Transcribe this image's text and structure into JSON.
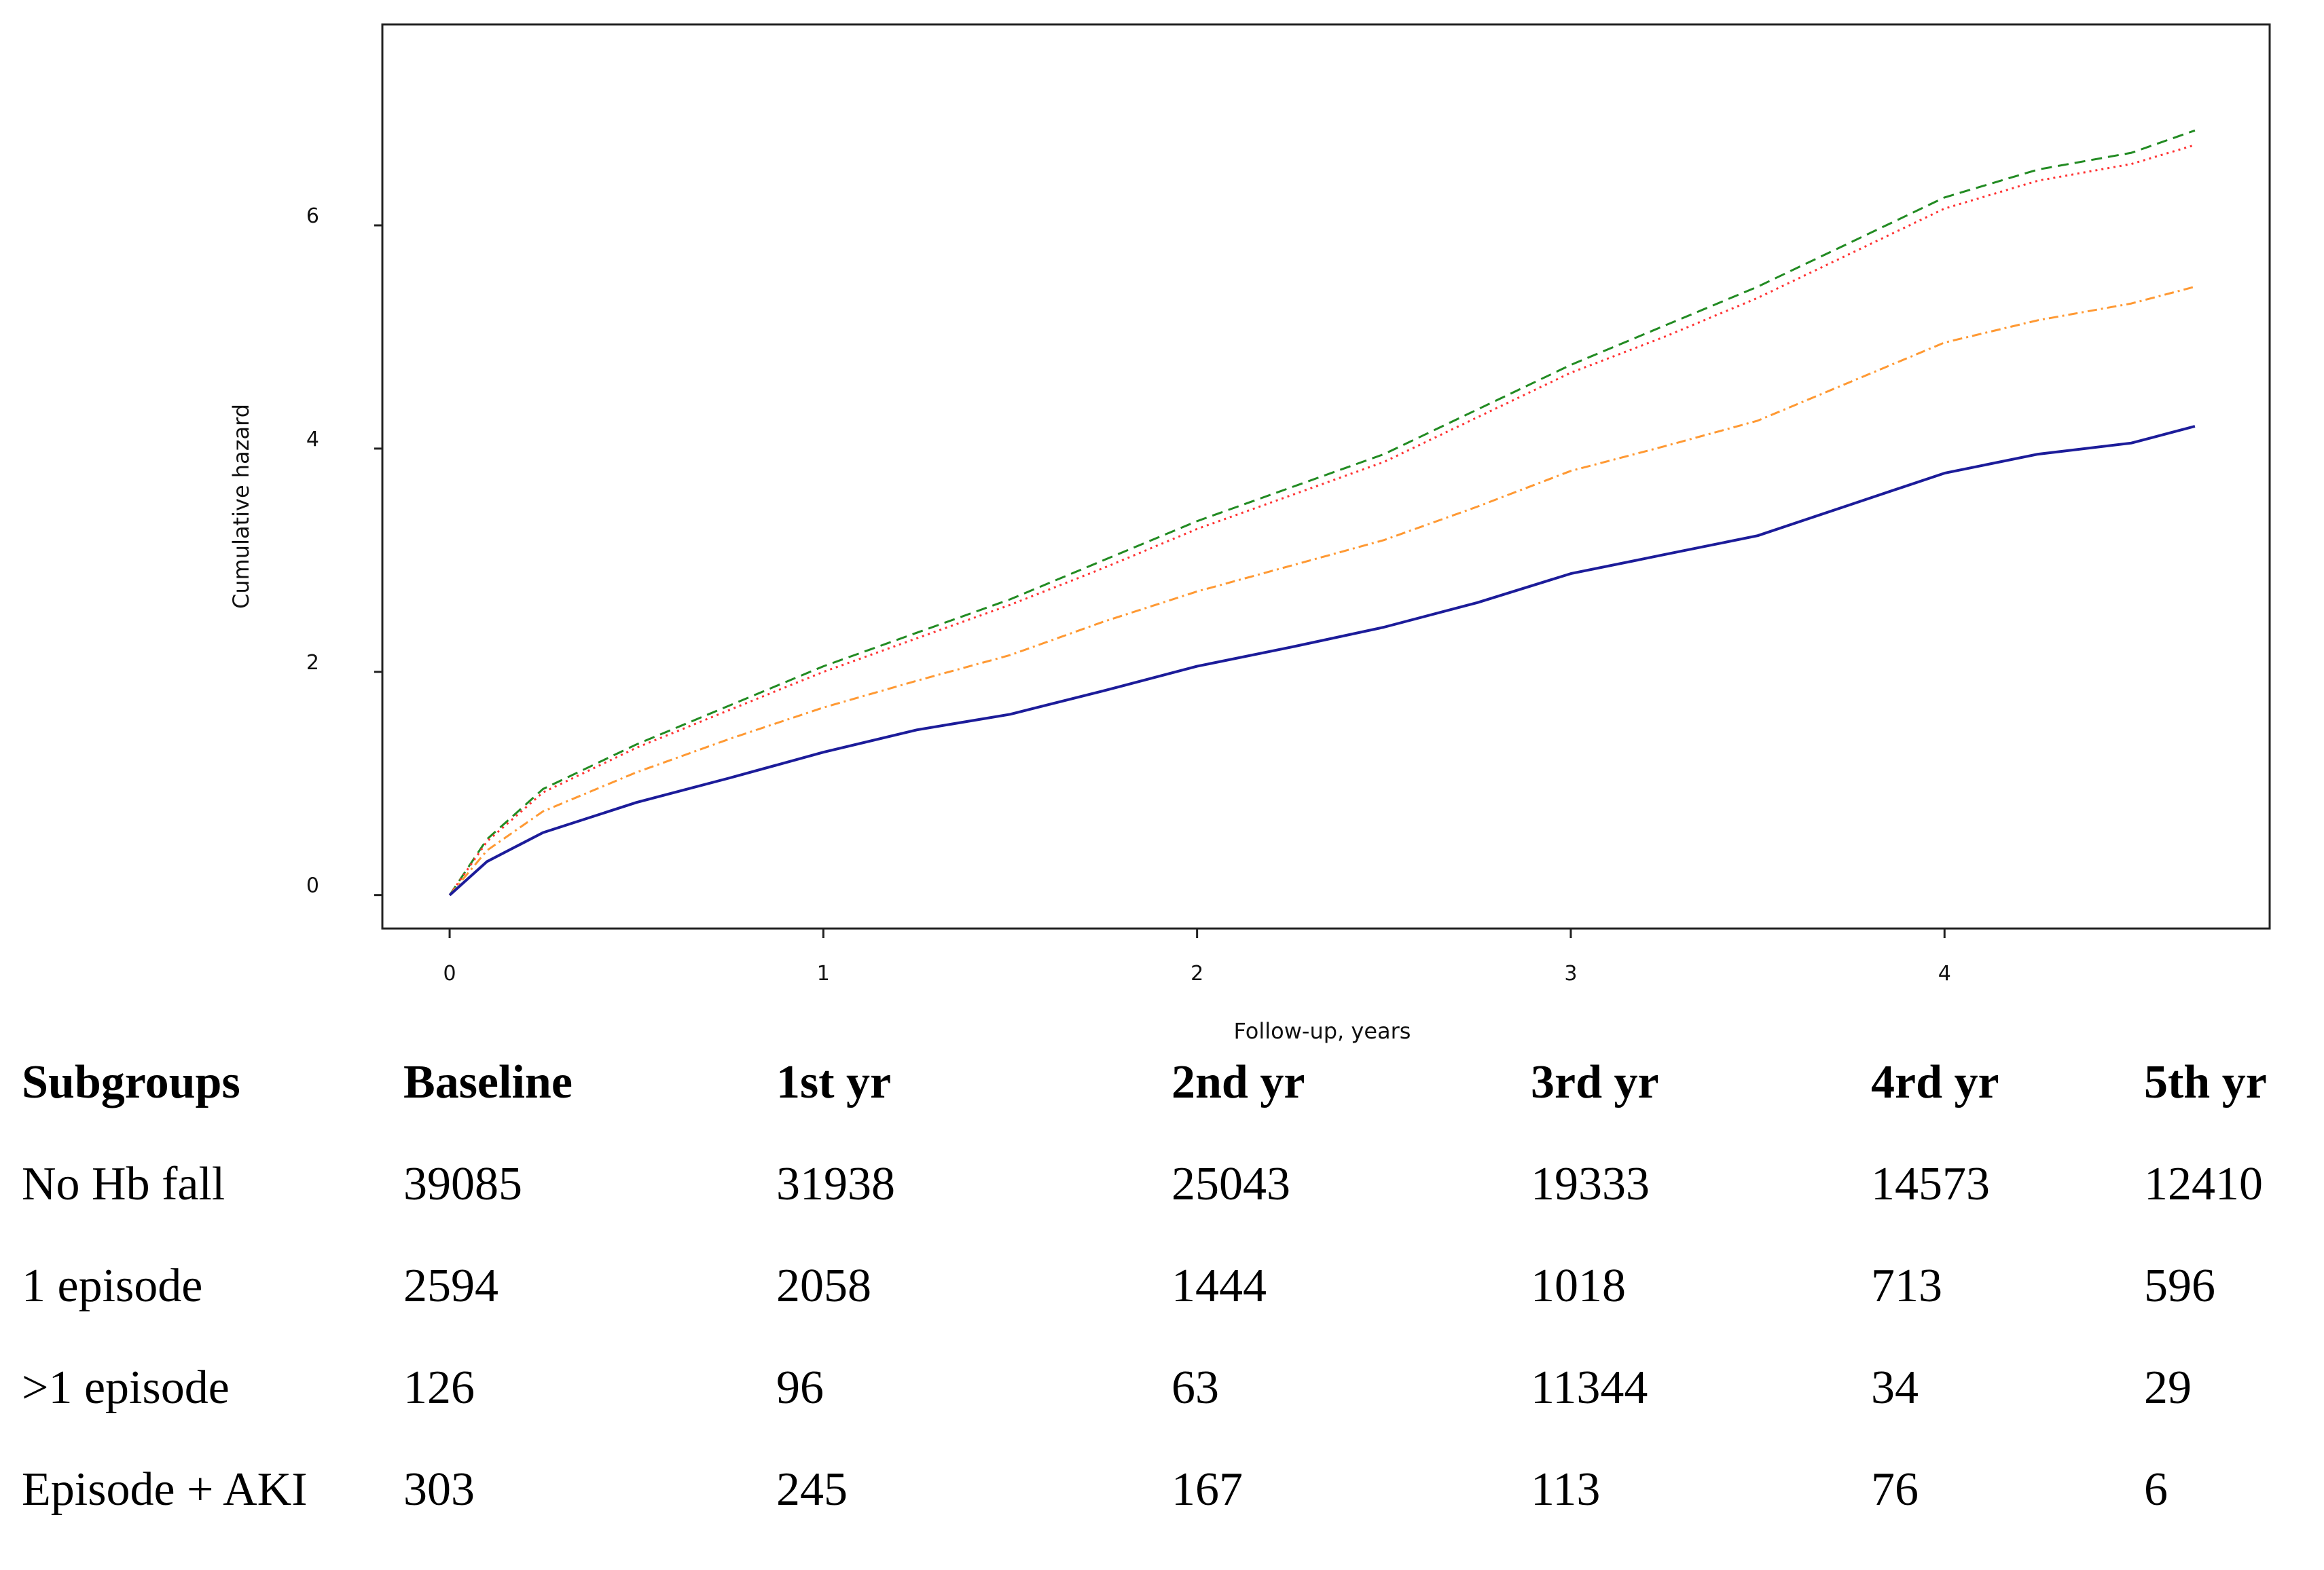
{
  "chart_data": {
    "type": "line",
    "xlabel": "Follow-up, years",
    "ylabel": "Cumulative hazard",
    "xlim": [
      -0.18,
      4.87
    ],
    "ylim": [
      -0.3,
      7.8
    ],
    "x_ticks": [
      0,
      1,
      2,
      3,
      4
    ],
    "y_ticks": [
      0,
      2,
      4,
      6
    ],
    "grid": false,
    "series": [
      {
        "color": "#228b22",
        "dash": "dashed",
        "x": [
          0,
          0.1,
          0.25,
          0.5,
          0.75,
          1.0,
          1.25,
          1.5,
          1.75,
          2.0,
          2.25,
          2.5,
          2.75,
          3.0,
          3.25,
          3.5,
          3.75,
          4.0,
          4.25,
          4.5,
          4.67
        ],
        "y": [
          0,
          0.5,
          0.95,
          1.35,
          1.7,
          2.05,
          2.35,
          2.65,
          3.0,
          3.35,
          3.65,
          3.95,
          4.35,
          4.75,
          5.1,
          5.45,
          5.85,
          6.25,
          6.5,
          6.65,
          6.85
        ]
      },
      {
        "color": "#ff3333",
        "dash": "dotted",
        "x": [
          0,
          0.1,
          0.25,
          0.5,
          0.75,
          1.0,
          1.25,
          1.5,
          1.75,
          2.0,
          2.25,
          2.5,
          2.75,
          3.0,
          3.25,
          3.5,
          3.75,
          4.0,
          4.25,
          4.5,
          4.67
        ],
        "y": [
          0,
          0.48,
          0.92,
          1.32,
          1.66,
          2.0,
          2.3,
          2.6,
          2.93,
          3.28,
          3.58,
          3.88,
          4.28,
          4.68,
          5.0,
          5.35,
          5.75,
          6.15,
          6.4,
          6.55,
          6.72
        ]
      },
      {
        "color": "#ff9933",
        "dash": "dashdot",
        "x": [
          0,
          0.1,
          0.25,
          0.5,
          0.75,
          1.0,
          1.25,
          1.5,
          1.75,
          2.0,
          2.25,
          2.5,
          2.75,
          3.0,
          3.25,
          3.5,
          3.75,
          4.0,
          4.25,
          4.5,
          4.67
        ],
        "y": [
          0,
          0.4,
          0.75,
          1.1,
          1.4,
          1.68,
          1.92,
          2.15,
          2.45,
          2.72,
          2.95,
          3.18,
          3.48,
          3.8,
          4.02,
          4.25,
          4.6,
          4.95,
          5.15,
          5.3,
          5.45
        ]
      },
      {
        "color": "#1c1c9a",
        "dash": "solid",
        "x": [
          0,
          0.1,
          0.25,
          0.5,
          0.75,
          1.0,
          1.25,
          1.5,
          1.75,
          2.0,
          2.25,
          2.5,
          2.75,
          3.0,
          3.25,
          3.5,
          3.75,
          4.0,
          4.25,
          4.5,
          4.67
        ],
        "y": [
          0,
          0.3,
          0.56,
          0.83,
          1.05,
          1.28,
          1.48,
          1.62,
          1.83,
          2.05,
          2.22,
          2.4,
          2.62,
          2.88,
          3.05,
          3.22,
          3.5,
          3.78,
          3.95,
          4.05,
          4.2
        ]
      }
    ]
  },
  "risk_table": {
    "headers": [
      "Subgroups",
      "Baseline",
      "1st yr",
      "2nd yr",
      "3rd yr",
      "4rd yr",
      "5th yr"
    ],
    "rows": [
      [
        "No Hb fall",
        "39085",
        "31938",
        "25043",
        "19333",
        "14573",
        "12410"
      ],
      [
        "1 episode",
        "2594",
        "2058",
        "1444",
        "1018",
        "713",
        "596"
      ],
      [
        ">1 episode",
        "126",
        "96",
        "63",
        "11344",
        "34",
        "29"
      ],
      [
        "Episode + AKI",
        "303",
        "245",
        "167",
        "113",
        "76",
        "6"
      ]
    ]
  }
}
